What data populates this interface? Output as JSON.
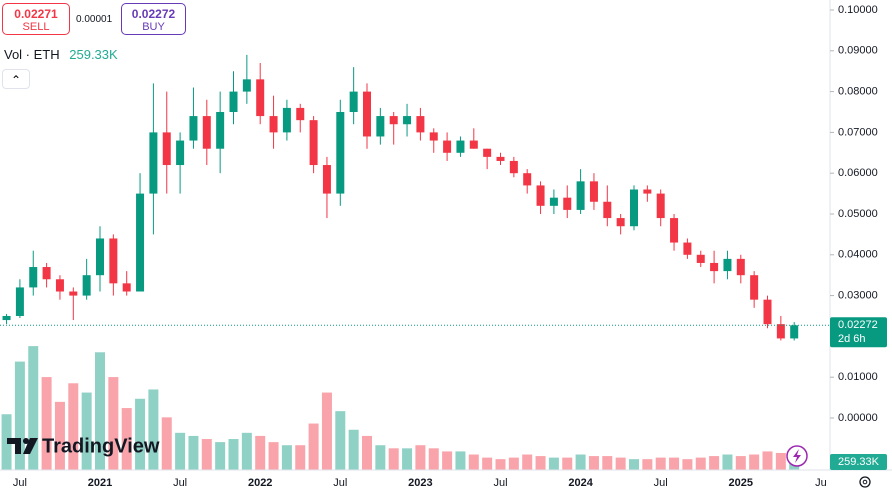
{
  "chart_data": {
    "type": "candlestick",
    "ui": {
      "sell_price": 0.02271,
      "sell_label": "SELL",
      "spread": 1e-05,
      "buy_price": 0.02272,
      "buy_label": "BUY",
      "volume_title": "Vol · ETH",
      "logo": "TradingView",
      "countdown": "2d 6h"
    },
    "x": [
      "2020-05",
      "2020-06",
      "2020-07",
      "2020-08",
      "2020-09",
      "2020-10",
      "2020-11",
      "2020-12",
      "2021-01",
      "2021-02",
      "2021-03",
      "2021-04",
      "2021-05",
      "2021-06",
      "2021-07",
      "2021-08",
      "2021-09",
      "2021-10",
      "2021-11",
      "2021-12",
      "2022-01",
      "2022-02",
      "2022-03",
      "2022-04",
      "2022-05",
      "2022-06",
      "2022-07",
      "2022-08",
      "2022-09",
      "2022-10",
      "2022-11",
      "2022-12",
      "2023-01",
      "2023-02",
      "2023-03",
      "2023-04",
      "2023-05",
      "2023-06",
      "2023-07",
      "2023-08",
      "2023-09",
      "2023-10",
      "2023-11",
      "2023-12",
      "2024-01",
      "2024-02",
      "2024-03",
      "2024-04",
      "2024-05",
      "2024-06",
      "2024-07",
      "2024-08",
      "2024-09",
      "2024-10",
      "2024-11",
      "2024-12",
      "2025-01",
      "2025-02",
      "2025-03",
      "2025-04",
      "2025-05"
    ],
    "open": [
      0.0225,
      0.024,
      0.025,
      0.032,
      0.037,
      0.034,
      0.031,
      0.03,
      0.035,
      0.044,
      0.033,
      0.031,
      0.055,
      0.07,
      0.062,
      0.068,
      0.074,
      0.066,
      0.075,
      0.08,
      0.083,
      0.074,
      0.07,
      0.076,
      0.073,
      0.062,
      0.055,
      0.075,
      0.08,
      0.069,
      0.074,
      0.072,
      0.074,
      0.07,
      0.068,
      0.065,
      0.068,
      0.066,
      0.064,
      0.063,
      0.06,
      0.057,
      0.052,
      0.054,
      0.051,
      0.058,
      0.053,
      0.049,
      0.047,
      0.056,
      0.055,
      0.049,
      0.043,
      0.04,
      0.038,
      0.036,
      0.039,
      0.035,
      0.029,
      0.023,
      0.0195
    ],
    "high": [
      0.0245,
      0.0255,
      0.034,
      0.041,
      0.038,
      0.035,
      0.032,
      0.039,
      0.047,
      0.045,
      0.036,
      0.06,
      0.082,
      0.08,
      0.07,
      0.081,
      0.078,
      0.08,
      0.085,
      0.089,
      0.087,
      0.079,
      0.078,
      0.077,
      0.074,
      0.064,
      0.078,
      0.086,
      0.082,
      0.076,
      0.075,
      0.077,
      0.076,
      0.071,
      0.07,
      0.069,
      0.071,
      0.066,
      0.065,
      0.064,
      0.061,
      0.058,
      0.056,
      0.057,
      0.061,
      0.06,
      0.057,
      0.05,
      0.057,
      0.057,
      0.056,
      0.05,
      0.044,
      0.041,
      0.041,
      0.041,
      0.04,
      0.036,
      0.03,
      0.025,
      0.0235
    ],
    "low": [
      0.022,
      0.023,
      0.0245,
      0.03,
      0.032,
      0.029,
      0.024,
      0.029,
      0.031,
      0.03,
      0.03,
      0.031,
      0.045,
      0.055,
      0.055,
      0.066,
      0.062,
      0.06,
      0.072,
      0.077,
      0.072,
      0.066,
      0.068,
      0.07,
      0.06,
      0.049,
      0.052,
      0.072,
      0.066,
      0.067,
      0.067,
      0.069,
      0.068,
      0.065,
      0.063,
      0.064,
      0.066,
      0.061,
      0.062,
      0.059,
      0.055,
      0.05,
      0.05,
      0.049,
      0.05,
      0.051,
      0.047,
      0.045,
      0.046,
      0.053,
      0.047,
      0.041,
      0.039,
      0.037,
      0.033,
      0.034,
      0.033,
      0.027,
      0.022,
      0.019,
      0.019
    ],
    "close": [
      0.024,
      0.025,
      0.032,
      0.037,
      0.034,
      0.031,
      0.03,
      0.035,
      0.044,
      0.033,
      0.031,
      0.055,
      0.07,
      0.062,
      0.068,
      0.074,
      0.066,
      0.075,
      0.08,
      0.083,
      0.074,
      0.07,
      0.076,
      0.073,
      0.062,
      0.055,
      0.075,
      0.08,
      0.069,
      0.074,
      0.072,
      0.074,
      0.07,
      0.068,
      0.065,
      0.068,
      0.066,
      0.064,
      0.063,
      0.06,
      0.057,
      0.052,
      0.054,
      0.051,
      0.058,
      0.053,
      0.049,
      0.047,
      0.056,
      0.055,
      0.049,
      0.043,
      0.04,
      0.038,
      0.036,
      0.039,
      0.035,
      0.029,
      0.023,
      0.0195,
      0.02272
    ],
    "volume": [
      1500000,
      1800000,
      3500000,
      4000000,
      3000000,
      2200000,
      2800000,
      2500000,
      3800000,
      3000000,
      2000000,
      2300000,
      2600000,
      1700000,
      1200000,
      1100000,
      1000000,
      900000,
      1000000,
      1200000,
      1100000,
      900000,
      800000,
      800000,
      1500000,
      2500000,
      1900000,
      1300000,
      1100000,
      800000,
      700000,
      700000,
      800000,
      700000,
      600000,
      600000,
      500000,
      400000,
      350000,
      400000,
      500000,
      450000,
      400000,
      400000,
      500000,
      450000,
      450000,
      400000,
      350000,
      350000,
      400000,
      400000,
      350000,
      400000,
      450000,
      500000,
      450000,
      500000,
      600000,
      550000,
      259330
    ],
    "volume_last_label": "259.33K",
    "vlim": [
      0,
      4100000
    ],
    "last_price": 0.02272,
    "up_color": "#089981",
    "down_color": "#f23645",
    "ylim": [
      -0.01275,
      0.10245
    ],
    "yticks": [
      {
        "value": 0.1,
        "label": "0.10000"
      },
      {
        "value": 0.09,
        "label": "0.09000"
      },
      {
        "value": 0.08,
        "label": "0.08000"
      },
      {
        "value": 0.07,
        "label": "0.07000"
      },
      {
        "value": 0.06,
        "label": "0.06000"
      },
      {
        "value": 0.05,
        "label": "0.05000"
      },
      {
        "value": 0.04,
        "label": "0.04000"
      },
      {
        "value": 0.03,
        "label": "0.03000"
      },
      {
        "value": 0.01,
        "label": "0.01000"
      },
      {
        "value": 0,
        "label": "0.00000"
      }
    ],
    "xticks": [
      {
        "value": "2020-07",
        "label": "Jul"
      },
      {
        "value": "2021-01",
        "label": "2021"
      },
      {
        "value": "2021-07",
        "label": "Jul"
      },
      {
        "value": "2022-01",
        "label": "2022"
      },
      {
        "value": "2022-07",
        "label": "Jul"
      },
      {
        "value": "2023-01",
        "label": "2023"
      },
      {
        "value": "2023-07",
        "label": "Jul"
      },
      {
        "value": "2024-01",
        "label": "2024"
      },
      {
        "value": "2024-07",
        "label": "Jul"
      },
      {
        "value": "2025-01",
        "label": "2025"
      },
      {
        "value": "2025-07",
        "label": "Ju"
      }
    ]
  }
}
